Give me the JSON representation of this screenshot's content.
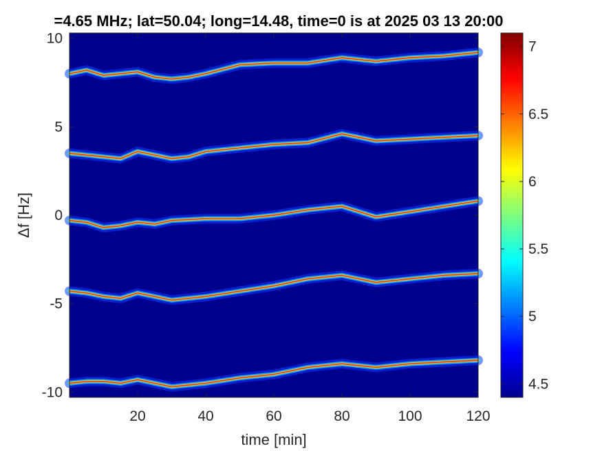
{
  "chart_data": {
    "type": "heatmap",
    "title": "=4.65 MHz;  lat=50.04; long=14.48, time=0 is at 2025 03 13 20:00",
    "xlabel": "time [min]",
    "ylabel": "Δf [Hz]",
    "xlim": [
      0,
      120
    ],
    "ylim": [
      -10.3,
      10.3
    ],
    "xticks": [
      20,
      40,
      60,
      80,
      100,
      120
    ],
    "yticks": [
      10,
      5,
      0,
      -5,
      -10
    ],
    "colorbar": {
      "range": [
        4.4,
        7.1
      ],
      "ticks": [
        7,
        6.5,
        6,
        5.5,
        5,
        4.5
      ],
      "colormap": "jet"
    },
    "series": [
      {
        "points": [
          [
            0,
            8.0
          ],
          [
            5,
            8.2
          ],
          [
            10,
            7.9
          ],
          [
            15,
            8.0
          ],
          [
            20,
            8.1
          ],
          [
            25,
            7.8
          ],
          [
            30,
            7.7
          ],
          [
            35,
            7.8
          ],
          [
            40,
            8.0
          ],
          [
            50,
            8.5
          ],
          [
            60,
            8.6
          ],
          [
            70,
            8.6
          ],
          [
            80,
            8.9
          ],
          [
            90,
            8.7
          ],
          [
            100,
            8.9
          ],
          [
            110,
            9.0
          ],
          [
            120,
            9.2
          ]
        ]
      },
      {
        "points": [
          [
            0,
            3.5
          ],
          [
            5,
            3.4
          ],
          [
            10,
            3.3
          ],
          [
            15,
            3.2
          ],
          [
            20,
            3.6
          ],
          [
            25,
            3.4
          ],
          [
            30,
            3.2
          ],
          [
            35,
            3.3
          ],
          [
            40,
            3.6
          ],
          [
            50,
            3.8
          ],
          [
            60,
            4.0
          ],
          [
            70,
            4.1
          ],
          [
            80,
            4.6
          ],
          [
            90,
            4.2
          ],
          [
            100,
            4.3
          ],
          [
            110,
            4.4
          ],
          [
            120,
            4.5
          ]
        ]
      },
      {
        "points": [
          [
            0,
            -0.3
          ],
          [
            5,
            -0.4
          ],
          [
            10,
            -0.7
          ],
          [
            15,
            -0.6
          ],
          [
            20,
            -0.4
          ],
          [
            25,
            -0.5
          ],
          [
            30,
            -0.3
          ],
          [
            40,
            -0.2
          ],
          [
            50,
            -0.2
          ],
          [
            60,
            0.0
          ],
          [
            70,
            0.3
          ],
          [
            80,
            0.5
          ],
          [
            90,
            -0.1
          ],
          [
            100,
            0.2
          ],
          [
            110,
            0.5
          ],
          [
            120,
            0.8
          ]
        ]
      },
      {
        "points": [
          [
            0,
            -4.3
          ],
          [
            5,
            -4.4
          ],
          [
            10,
            -4.6
          ],
          [
            15,
            -4.7
          ],
          [
            20,
            -4.4
          ],
          [
            25,
            -4.6
          ],
          [
            30,
            -4.8
          ],
          [
            40,
            -4.6
          ],
          [
            50,
            -4.3
          ],
          [
            60,
            -4.0
          ],
          [
            70,
            -3.6
          ],
          [
            80,
            -3.4
          ],
          [
            90,
            -3.8
          ],
          [
            100,
            -3.6
          ],
          [
            110,
            -3.4
          ],
          [
            120,
            -3.3
          ]
        ]
      },
      {
        "points": [
          [
            0,
            -9.5
          ],
          [
            5,
            -9.4
          ],
          [
            10,
            -9.4
          ],
          [
            15,
            -9.5
          ],
          [
            20,
            -9.3
          ],
          [
            25,
            -9.5
          ],
          [
            30,
            -9.7
          ],
          [
            40,
            -9.5
          ],
          [
            50,
            -9.2
          ],
          [
            60,
            -9.0
          ],
          [
            70,
            -8.6
          ],
          [
            80,
            -8.4
          ],
          [
            90,
            -8.6
          ],
          [
            100,
            -8.4
          ],
          [
            110,
            -8.3
          ],
          [
            120,
            -8.2
          ]
        ]
      }
    ]
  }
}
